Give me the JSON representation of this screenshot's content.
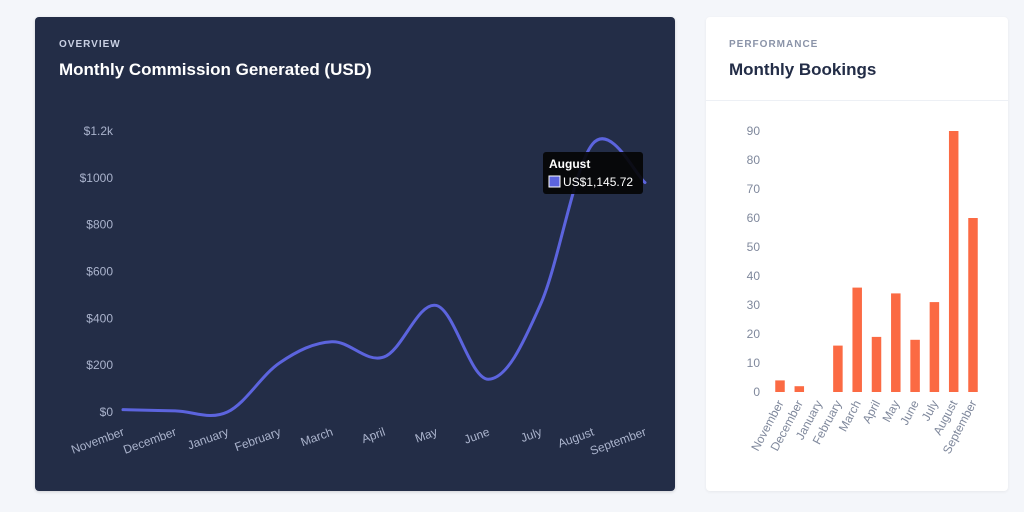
{
  "commission_card": {
    "eyebrow": "OVERVIEW",
    "title": "Monthly Commission Generated (USD)",
    "line_color": "#5c64de"
  },
  "bookings_card": {
    "eyebrow": "PERFORMANCE",
    "title": "Monthly Bookings",
    "bar_color": "#fb6a43"
  },
  "chart_data": [
    {
      "type": "line",
      "title": "Monthly Commission Generated (USD)",
      "categories": [
        "November",
        "December",
        "January",
        "February",
        "March",
        "April",
        "May",
        "June",
        "July",
        "August",
        "September"
      ],
      "values": [
        10,
        5,
        0,
        210,
        300,
        235,
        455,
        140,
        460,
        1145.72,
        980
      ],
      "y_ticks": [
        0,
        200,
        400,
        600,
        800,
        1000,
        1200
      ],
      "y_tick_labels": [
        "$0",
        "$200",
        "$400",
        "$600",
        "$800",
        "$1000",
        "$1.2k"
      ],
      "ylim": [
        0,
        1200
      ],
      "grid": false,
      "tooltip": {
        "label": "August",
        "value": "US$1,145.72"
      }
    },
    {
      "type": "bar",
      "title": "Monthly Bookings",
      "categories": [
        "November",
        "December",
        "January",
        "February",
        "March",
        "April",
        "May",
        "June",
        "July",
        "August",
        "September"
      ],
      "values": [
        4,
        2,
        0,
        16,
        36,
        19,
        34,
        18,
        31,
        90,
        60
      ],
      "y_ticks": [
        0,
        10,
        20,
        30,
        40,
        50,
        60,
        70,
        80,
        90
      ],
      "ylim": [
        0,
        90
      ],
      "grid": false
    }
  ]
}
